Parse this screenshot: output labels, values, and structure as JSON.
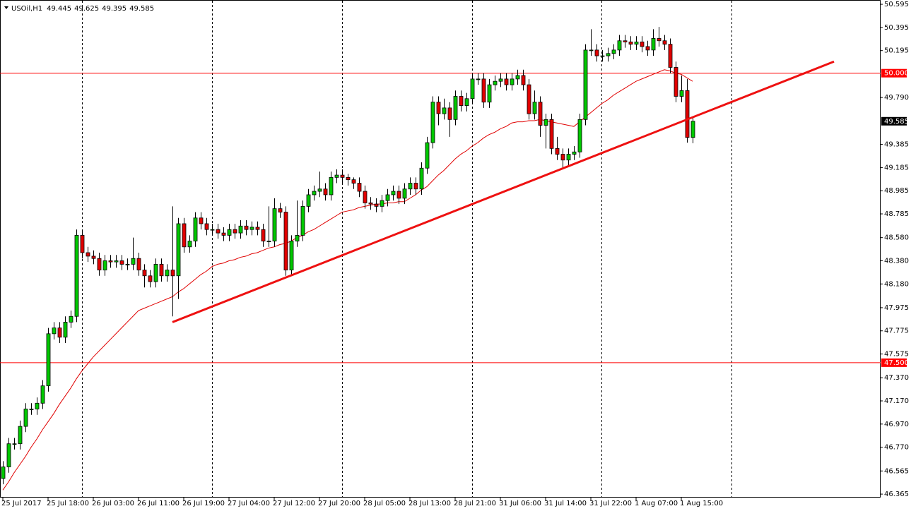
{
  "chart_data": {
    "type": "candlestick",
    "symbol": "USOil,H1",
    "categories": [
      "25 Jul 2017",
      null,
      null,
      null,
      null,
      null,
      null,
      null,
      "25 Jul 18:00",
      null,
      null,
      null,
      null,
      null,
      null,
      null,
      "26 Jul 03:00",
      null,
      null,
      null,
      null,
      null,
      null,
      null,
      "26 Jul 11:00",
      null,
      null,
      null,
      null,
      null,
      null,
      null,
      "26 Jul 19:00",
      null,
      null,
      null,
      null,
      null,
      null,
      null,
      "27 Jul 04:00",
      null,
      null,
      null,
      null,
      null,
      null,
      null,
      "27 Jul 12:00",
      null,
      null,
      null,
      null,
      null,
      null,
      null,
      "27 Jul 20:00",
      null,
      null,
      null,
      null,
      null,
      null,
      null,
      "28 Jul 05:00",
      null,
      null,
      null,
      null,
      null,
      null,
      null,
      "28 Jul 13:00",
      null,
      null,
      null,
      null,
      null,
      null,
      null,
      "28 Jul 21:00",
      null,
      null,
      null,
      null,
      null,
      null,
      null,
      "31 Jul 06:00",
      null,
      null,
      null,
      null,
      null,
      null,
      null,
      "31 Jul 14:00",
      null,
      null,
      null,
      null,
      null,
      null,
      null,
      "31 Jul 22:00",
      null,
      null,
      null,
      null,
      null,
      null,
      null,
      "1 Aug 07:00",
      null,
      null,
      null,
      null,
      null,
      null,
      null,
      "1 Aug 15:00",
      null,
      null
    ],
    "open": [
      46.5,
      46.6,
      46.8,
      46.8,
      46.95,
      47.1,
      47.1,
      47.15,
      47.3,
      47.75,
      47.8,
      47.72,
      47.85,
      47.9,
      48.6,
      48.45,
      48.42,
      48.4,
      48.3,
      48.38,
      48.37,
      48.38,
      48.35,
      48.35,
      48.4,
      48.3,
      48.25,
      48.2,
      48.35,
      48.25,
      48.3,
      48.25,
      48.7,
      48.5,
      48.55,
      48.75,
      48.7,
      48.65,
      48.65,
      48.62,
      48.6,
      48.65,
      48.62,
      48.68,
      48.65,
      48.67,
      48.65,
      48.55,
      48.55,
      48.83,
      48.8,
      48.3,
      48.55,
      48.6,
      48.85,
      48.95,
      48.98,
      49.0,
      48.95,
      49.1,
      49.12,
      49.1,
      49.08,
      49.05,
      48.98,
      48.88,
      48.87,
      48.85,
      48.9,
      48.95,
      48.98,
      48.92,
      49.0,
      49.05,
      49.0,
      49.18,
      49.4,
      49.75,
      49.65,
      49.7,
      49.6,
      49.8,
      49.72,
      49.78,
      49.95,
      49.95,
      49.75,
      49.9,
      49.93,
      49.95,
      49.9,
      49.95,
      49.98,
      49.9,
      49.65,
      49.75,
      49.55,
      49.6,
      49.35,
      49.3,
      49.25,
      49.3,
      49.32,
      49.6,
      50.2,
      50.2,
      50.15,
      50.15,
      50.17,
      50.2,
      50.28,
      50.27,
      50.25,
      50.27,
      50.23,
      50.2,
      50.3,
      50.28,
      50.25,
      50.05,
      49.8,
      49.85,
      49.445
    ],
    "high": [
      46.65,
      46.85,
      46.85,
      47.0,
      47.15,
      47.15,
      47.2,
      47.35,
      47.8,
      47.85,
      47.85,
      47.9,
      47.95,
      48.65,
      48.65,
      48.5,
      48.47,
      48.45,
      48.43,
      48.43,
      48.43,
      48.43,
      48.4,
      48.58,
      48.45,
      48.35,
      48.3,
      48.4,
      48.4,
      48.35,
      48.85,
      48.75,
      48.75,
      48.6,
      48.8,
      48.8,
      48.75,
      48.7,
      48.7,
      48.67,
      48.7,
      48.7,
      48.73,
      48.73,
      48.72,
      48.72,
      48.7,
      48.85,
      48.92,
      48.88,
      48.85,
      48.6,
      48.9,
      48.9,
      49.0,
      49.03,
      49.15,
      49.05,
      49.15,
      49.17,
      49.17,
      49.13,
      49.1,
      49.1,
      49.03,
      48.93,
      48.92,
      48.95,
      49.0,
      49.03,
      49.03,
      49.05,
      49.1,
      49.1,
      49.23,
      49.45,
      49.8,
      49.8,
      49.78,
      49.75,
      49.85,
      49.85,
      49.83,
      50.0,
      50.0,
      50.0,
      49.95,
      49.98,
      50.0,
      50.0,
      50.0,
      50.03,
      50.03,
      49.95,
      49.85,
      49.8,
      49.65,
      49.65,
      49.45,
      49.35,
      49.35,
      49.37,
      49.65,
      50.25,
      50.38,
      50.25,
      50.2,
      50.22,
      50.25,
      50.33,
      50.33,
      50.32,
      50.32,
      50.32,
      50.28,
      50.38,
      50.4,
      50.33,
      50.3,
      50.1,
      49.98,
      49.95,
      49.625
    ],
    "low": [
      46.45,
      46.55,
      46.75,
      46.75,
      46.9,
      47.05,
      47.05,
      47.1,
      47.25,
      47.7,
      47.67,
      47.67,
      47.8,
      47.85,
      48.4,
      48.37,
      48.35,
      48.25,
      48.25,
      48.32,
      48.32,
      48.3,
      48.3,
      48.3,
      48.25,
      48.15,
      48.15,
      48.15,
      48.2,
      48.2,
      47.9,
      48.05,
      48.45,
      48.45,
      48.5,
      48.65,
      48.6,
      48.6,
      48.57,
      48.55,
      48.55,
      48.57,
      48.57,
      48.6,
      48.6,
      48.6,
      48.5,
      48.5,
      48.5,
      48.75,
      48.25,
      48.25,
      48.5,
      48.55,
      48.8,
      48.9,
      48.93,
      48.9,
      48.9,
      49.05,
      49.05,
      49.03,
      49.0,
      48.93,
      48.83,
      48.82,
      48.8,
      48.8,
      48.85,
      48.9,
      48.87,
      48.87,
      48.95,
      48.95,
      48.95,
      49.13,
      49.35,
      49.55,
      49.6,
      49.45,
      49.55,
      49.67,
      49.67,
      49.73,
      49.9,
      49.7,
      49.7,
      49.85,
      49.88,
      49.85,
      49.85,
      49.9,
      49.85,
      49.6,
      49.6,
      49.45,
      49.35,
      49.3,
      49.25,
      49.18,
      49.2,
      49.25,
      49.27,
      49.55,
      50.15,
      50.1,
      50.1,
      50.1,
      50.12,
      50.15,
      50.22,
      50.2,
      50.2,
      50.18,
      50.15,
      50.15,
      50.23,
      50.2,
      50.0,
      49.75,
      49.75,
      49.4,
      49.395
    ],
    "close": [
      46.6,
      46.8,
      46.8,
      46.95,
      47.1,
      47.1,
      47.15,
      47.3,
      47.75,
      47.8,
      47.72,
      47.85,
      47.9,
      48.6,
      48.45,
      48.42,
      48.4,
      48.3,
      48.38,
      48.37,
      48.38,
      48.35,
      48.35,
      48.4,
      48.3,
      48.25,
      48.2,
      48.35,
      48.25,
      48.3,
      48.25,
      48.7,
      48.5,
      48.55,
      48.75,
      48.7,
      48.65,
      48.65,
      48.62,
      48.6,
      48.65,
      48.62,
      48.68,
      48.65,
      48.67,
      48.65,
      48.55,
      48.55,
      48.83,
      48.8,
      48.3,
      48.55,
      48.6,
      48.85,
      48.95,
      48.98,
      49.0,
      48.95,
      49.1,
      49.12,
      49.1,
      49.08,
      49.05,
      48.98,
      48.88,
      48.87,
      48.85,
      48.9,
      48.95,
      48.98,
      48.92,
      49.0,
      49.05,
      49.0,
      49.18,
      49.4,
      49.75,
      49.65,
      49.7,
      49.6,
      49.8,
      49.72,
      49.78,
      49.95,
      49.95,
      49.75,
      49.9,
      49.93,
      49.95,
      49.9,
      49.95,
      49.98,
      49.9,
      49.65,
      49.75,
      49.55,
      49.6,
      49.35,
      49.3,
      49.25,
      49.3,
      49.32,
      49.6,
      50.2,
      50.2,
      50.15,
      50.15,
      50.17,
      50.2,
      50.28,
      50.27,
      50.25,
      50.27,
      50.23,
      50.2,
      50.3,
      50.28,
      50.25,
      50.05,
      49.8,
      49.85,
      49.445,
      49.585
    ],
    "ma": [
      46.4,
      46.47,
      46.55,
      46.62,
      46.69,
      46.77,
      46.84,
      46.92,
      46.99,
      47.06,
      47.14,
      47.21,
      47.28,
      47.36,
      47.43,
      47.49,
      47.55,
      47.6,
      47.65,
      47.7,
      47.75,
      47.8,
      47.85,
      47.9,
      47.95,
      47.97,
      47.99,
      48.01,
      48.03,
      48.05,
      48.07,
      48.11,
      48.14,
      48.18,
      48.22,
      48.26,
      48.29,
      48.33,
      48.35,
      48.36,
      48.38,
      48.39,
      48.41,
      48.42,
      48.44,
      48.45,
      48.47,
      48.49,
      48.5,
      48.52,
      48.53,
      48.55,
      48.58,
      48.6,
      48.63,
      48.65,
      48.68,
      48.71,
      48.74,
      48.77,
      48.8,
      48.81,
      48.82,
      48.84,
      48.85,
      48.86,
      48.87,
      48.87,
      48.88,
      48.88,
      48.89,
      48.89,
      48.92,
      48.95,
      48.99,
      49.02,
      49.07,
      49.12,
      49.16,
      49.21,
      49.26,
      49.3,
      49.33,
      49.37,
      49.4,
      49.44,
      49.47,
      49.49,
      49.52,
      49.54,
      49.57,
      49.58,
      49.58,
      49.59,
      49.59,
      49.6,
      49.59,
      49.58,
      49.57,
      49.56,
      49.55,
      49.54,
      49.58,
      49.62,
      49.66,
      49.7,
      49.74,
      49.77,
      49.81,
      49.84,
      49.87,
      49.9,
      49.93,
      49.95,
      49.97,
      49.99,
      50.01,
      50.03,
      50.02,
      50.0,
      49.99,
      49.96,
      49.93
    ],
    "ylim": [
      46.335,
      50.632
    ],
    "yticks": [
      50.595,
      50.395,
      50.195,
      {
        "value": 49.79,
        "label": "49.790"
      },
      49.385,
      49.185,
      48.985,
      48.785,
      {
        "value": 48.58,
        "label": "48.580"
      },
      {
        "value": 48.38,
        "label": "48.380"
      },
      {
        "value": 48.18,
        "label": "48.180"
      },
      47.975,
      47.775,
      47.575,
      {
        "value": 47.37,
        "label": "47.370"
      },
      {
        "value": 47.17,
        "label": "47.170"
      },
      {
        "value": 46.97,
        "label": "46.970"
      },
      {
        "value": 46.77,
        "label": "46.770"
      },
      46.565,
      46.365
    ],
    "hlines": [
      {
        "value": 50,
        "label": "50.000"
      },
      {
        "value": 47.5,
        "label": "47.500"
      }
    ],
    "trendline": {
      "start": [
        30,
        47.85
      ],
      "end": [
        147,
        50.1
      ]
    },
    "colors": {
      "up": "#00c800",
      "down": "#e00000",
      "ma": "#e00000",
      "lines": "#ff0000",
      "trend": "#ee1111"
    }
  }
}
